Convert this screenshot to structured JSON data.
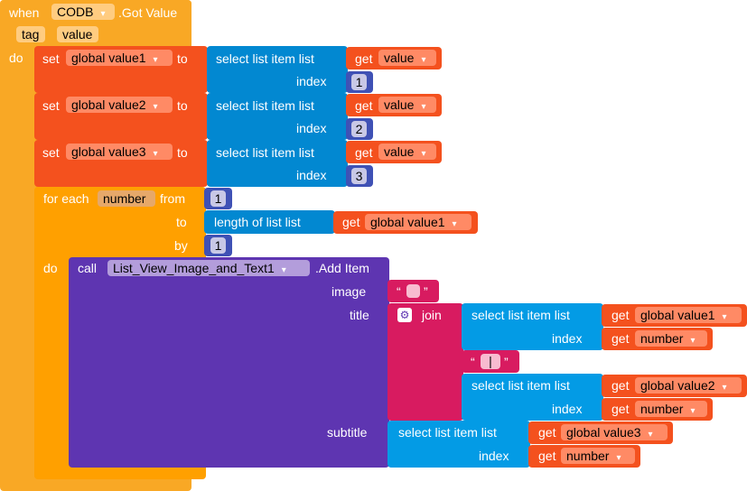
{
  "event": {
    "when_label": "when",
    "component": "CODB",
    "event_name": ".Got Value",
    "params": [
      "tag",
      "value"
    ],
    "do_label": "do"
  },
  "sets": [
    {
      "set_label": "set",
      "var": "global value1",
      "to_label": "to",
      "select_label": "select list item  list",
      "get_label": "get",
      "get_var": "value",
      "index_label": "index",
      "index_value": "1"
    },
    {
      "set_label": "set",
      "var": "global value2",
      "to_label": "to",
      "select_label": "select list item  list",
      "get_label": "get",
      "get_var": "value",
      "index_label": "index",
      "index_value": "2"
    },
    {
      "set_label": "set",
      "var": "global value3",
      "to_label": "to",
      "select_label": "select list item  list",
      "get_label": "get",
      "get_var": "value",
      "index_label": "index",
      "index_value": "3"
    }
  ],
  "loop": {
    "for_each_label": "for each",
    "var": "number",
    "from_label": "from",
    "from_value": "1",
    "to_label": "to",
    "length_label": "length of list   list",
    "get_label": "get",
    "get_var": "global value1",
    "by_label": "by",
    "by_value": "1",
    "do_label": "do"
  },
  "call": {
    "call_label": "call",
    "component": "List_View_Image_and_Text1",
    "method": ".Add Item",
    "image_label": "image",
    "title_label": "title",
    "subtitle_label": "subtitle",
    "join_label": "join",
    "open_quote": "“",
    "close_quote": "”",
    "separator": "|",
    "select_label": "select list item  list",
    "index_label": "index",
    "get_label": "get",
    "title_list1": "global value1",
    "title_index1": "number",
    "title_list2": "global value2",
    "title_index2": "number",
    "subtitle_list": "global value3",
    "subtitle_index": "number"
  }
}
